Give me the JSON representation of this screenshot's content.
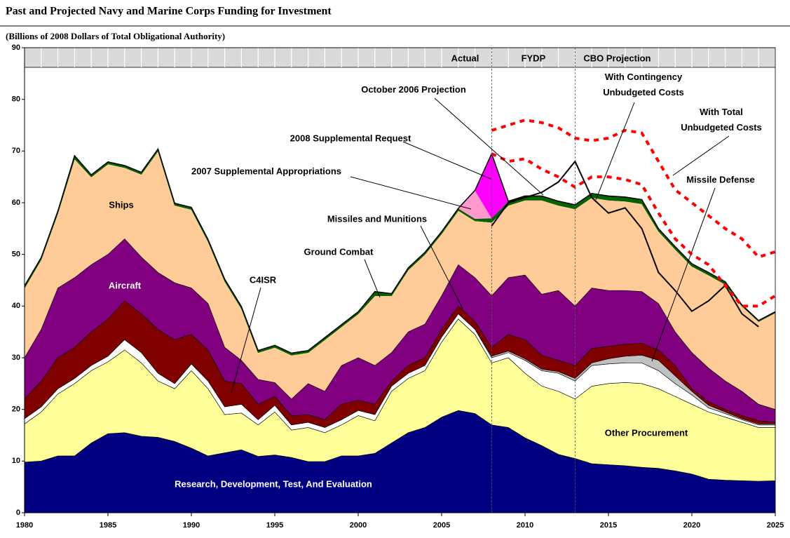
{
  "chart_data": {
    "type": "area",
    "stacked": true,
    "title": "Past and Projected Navy and Marine Corps Funding for Investment",
    "subtitle": "(Billions of 2008 Dollars of Total Obligational Authority)",
    "x": [
      1980,
      1981,
      1982,
      1983,
      1984,
      1985,
      1986,
      1987,
      1988,
      1989,
      1990,
      1991,
      1992,
      1993,
      1994,
      1995,
      1996,
      1997,
      1998,
      1999,
      2000,
      2001,
      2002,
      2003,
      2004,
      2005,
      2006,
      2007,
      2008,
      2009,
      2010,
      2011,
      2012,
      2013,
      2014,
      2015,
      2016,
      2017,
      2018,
      2019,
      2020,
      2021,
      2022,
      2023,
      2024,
      2025
    ],
    "xlim": [
      1980,
      2025
    ],
    "xticks": [
      1980,
      1985,
      1990,
      1995,
      2000,
      2005,
      2010,
      2015,
      2020,
      2025
    ],
    "ylim": [
      0,
      90
    ],
    "yticks": [
      0,
      10,
      20,
      30,
      40,
      50,
      60,
      70,
      80,
      90
    ],
    "periods": [
      {
        "label": "Actual"
      },
      {
        "label": "FYDP"
      },
      {
        "label": "CBO Projection"
      }
    ],
    "dividers": [
      2008,
      2013
    ],
    "series": [
      {
        "name": "Research, Development, Test, And Evaluation",
        "color": "#000080",
        "values": [
          9.8,
          10,
          11,
          11,
          13.5,
          15.3,
          15.5,
          14.8,
          14.6,
          13.8,
          12.5,
          11,
          11.6,
          12.2,
          10.9,
          11.2,
          10.7,
          9.9,
          9.9,
          11,
          11,
          11.5,
          13.5,
          15.5,
          16.5,
          18.5,
          19.8,
          19.2,
          17,
          16.5,
          14.5,
          13,
          11.3,
          10.5,
          9.5,
          9.3,
          9.1,
          8.8,
          8.6,
          8.1,
          7.5,
          6.5,
          6.3,
          6.2,
          6.1,
          6.2
        ]
      },
      {
        "name": "Other Procurement",
        "color": "#ffff99",
        "values": [
          7.4,
          9.5,
          12,
          14,
          14,
          13.9,
          16,
          14.2,
          10.9,
          10.2,
          15,
          13,
          7.4,
          7.1,
          6.1,
          8.3,
          5.3,
          6.6,
          5.6,
          6,
          7.8,
          6.3,
          10,
          10.5,
          11,
          14.5,
          17.7,
          15.3,
          12,
          13.5,
          12.5,
          11.5,
          12.2,
          11.5,
          15,
          15.7,
          16.1,
          16.2,
          15.4,
          14.4,
          13.5,
          13,
          12.2,
          11.3,
          10.4,
          10.3
        ]
      },
      {
        "name": "C4ISR",
        "color": "#ffffff",
        "values": [
          1,
          1,
          1,
          1,
          1,
          1.1,
          2,
          2,
          1.5,
          1,
          1.3,
          1.5,
          1.5,
          1.7,
          1,
          1.3,
          1,
          1,
          1,
          1,
          1,
          1.2,
          1,
          1,
          1,
          1,
          1,
          1,
          1,
          1,
          2.5,
          3,
          3.5,
          3.5,
          4,
          3.8,
          3.8,
          4,
          3.5,
          2.5,
          1.8,
          0.8,
          0.7,
          0.5,
          0.5,
          0.5
        ]
      },
      {
        "name": "Missile Defense",
        "color": "#c0c0c0",
        "values": [
          0,
          0,
          0,
          0,
          0,
          0,
          0,
          0,
          0,
          0,
          0,
          0,
          0,
          0,
          0,
          0,
          0,
          0,
          0,
          0,
          0,
          0,
          0,
          0,
          0,
          0,
          0,
          0,
          0.3,
          0.3,
          0.3,
          0.3,
          0.3,
          0.5,
          0.5,
          1,
          1.3,
          1.5,
          2,
          1.5,
          0.7,
          0.5,
          0.3,
          0.2,
          0.2,
          0.2
        ]
      },
      {
        "name": "Missiles and Munitions",
        "color": "#800000",
        "values": [
          3.8,
          5,
          6,
          6,
          6.5,
          7.2,
          7.5,
          7.5,
          8.5,
          8.5,
          5.7,
          6,
          5,
          4,
          3,
          1.7,
          1.8,
          1.5,
          1.5,
          3,
          2,
          2,
          1,
          1.5,
          1.5,
          1.5,
          1.5,
          1.5,
          1.7,
          3.2,
          3.7,
          2.7,
          2.2,
          2.5,
          2.8,
          2.4,
          2.3,
          2.3,
          2,
          2,
          0.5,
          0.7,
          0.5,
          0.6,
          0.6,
          0.3
        ]
      },
      {
        "name": "Aircraft",
        "color": "#800080",
        "values": [
          8,
          10,
          13.5,
          13.5,
          13,
          12.5,
          12,
          11,
          11,
          11,
          9,
          9,
          6.5,
          4.5,
          4.8,
          2.7,
          3.2,
          6,
          5.5,
          7.5,
          8.2,
          7.5,
          5.5,
          6.5,
          6.5,
          6.5,
          8,
          8.5,
          10,
          11,
          12.5,
          11.8,
          13.5,
          11.5,
          11.7,
          10.8,
          10.4,
          10,
          9,
          6.5,
          7,
          6.5,
          5.5,
          4.7,
          3.2,
          2.5
        ]
      },
      {
        "name": "Ships",
        "color": "#ffcc99",
        "values": [
          13.5,
          13.5,
          14.5,
          23,
          17,
          17.5,
          13.8,
          16,
          23.5,
          15,
          15.2,
          12,
          12.8,
          10,
          5.2,
          6.8,
          8.5,
          6,
          10,
          7.5,
          8.5,
          13.5,
          11,
          12,
          13.5,
          12,
          10.5,
          11,
          14.2,
          14,
          14.5,
          18.2,
          16.5,
          18.8,
          17.5,
          17.5,
          17.3,
          17,
          14,
          16,
          16.7,
          18,
          18.7,
          16.5,
          16,
          18.7
        ]
      },
      {
        "name": "Ground Combat",
        "color": "#006400",
        "values": [
          0.4,
          0.4,
          0.4,
          0.6,
          0.4,
          0.4,
          0.4,
          0.4,
          0.4,
          0.4,
          0.4,
          0.4,
          0.4,
          0.4,
          0.4,
          0.4,
          0.4,
          0.4,
          0.4,
          0.4,
          0.4,
          0.8,
          0.4,
          0.4,
          0.4,
          0.4,
          0.4,
          0.4,
          0.8,
          0.8,
          0.8,
          0.8,
          0.8,
          0.8,
          0.8,
          0.8,
          0.8,
          0.8,
          0.5,
          0.5,
          0.5,
          0.5,
          0.5,
          0.2,
          0.2,
          0.2
        ]
      },
      {
        "name": "2007 Supplemental Appropriations",
        "color": "#ff99cc",
        "values": [
          0,
          0,
          0,
          0,
          0,
          0,
          0,
          0,
          0,
          0,
          0,
          0,
          0,
          0,
          0,
          0,
          0,
          0,
          0,
          0,
          0,
          0,
          0,
          0,
          0,
          0,
          0,
          5.5,
          0,
          0,
          0,
          0,
          0,
          0,
          0,
          0,
          0,
          0,
          0,
          0,
          0,
          0,
          0,
          0,
          0,
          0
        ]
      },
      {
        "name": "2008 Supplemental Request",
        "color": "#ff00ff",
        "values": [
          0,
          0,
          0,
          0,
          0,
          0,
          0,
          0,
          0,
          0,
          0,
          0,
          0,
          0,
          0,
          0,
          0,
          0,
          0,
          0,
          0,
          0,
          0,
          0,
          0,
          0,
          0,
          0,
          12.5,
          0,
          0,
          0,
          0,
          0,
          0,
          0,
          0,
          0,
          0,
          0,
          0,
          0,
          0,
          0,
          0,
          0
        ]
      }
    ],
    "lines": [
      {
        "name": "October 2006 Projection",
        "color": "#000000",
        "style": "solid",
        "x": [
          2008,
          2009,
          2010,
          2011,
          2012,
          2013,
          2014,
          2015,
          2016,
          2017,
          2018,
          2019,
          2020,
          2021,
          2022,
          2023,
          2024
        ],
        "values": [
          55.5,
          60,
          61,
          62,
          64,
          68,
          61,
          58,
          59,
          55,
          46.5,
          43,
          39,
          41,
          44,
          38.5,
          36
        ]
      },
      {
        "name": "With Contingency Unbudgeted Costs",
        "color": "#ff0000",
        "style": "dotted",
        "x": [
          2008,
          2009,
          2010,
          2011,
          2012,
          2013,
          2014,
          2015,
          2016,
          2017,
          2018,
          2019,
          2020,
          2021,
          2022,
          2023,
          2024,
          2025
        ],
        "values": [
          69.5,
          68,
          68.5,
          66.5,
          65,
          63,
          65,
          65,
          64.5,
          63.5,
          58,
          53,
          50,
          48,
          44,
          40,
          40,
          42
        ]
      },
      {
        "name": "With Total Unbudgeted Costs",
        "color": "#ff0000",
        "style": "dotted",
        "x": [
          2008,
          2009,
          2010,
          2011,
          2012,
          2013,
          2014,
          2015,
          2016,
          2017,
          2018,
          2019,
          2020,
          2021,
          2022,
          2023,
          2024,
          2025
        ],
        "values": [
          74,
          75,
          76,
          75.5,
          74.5,
          72.5,
          72,
          72.5,
          74,
          73.5,
          68,
          62.5,
          60,
          57.5,
          55,
          53,
          49.5,
          50.5
        ]
      }
    ]
  }
}
